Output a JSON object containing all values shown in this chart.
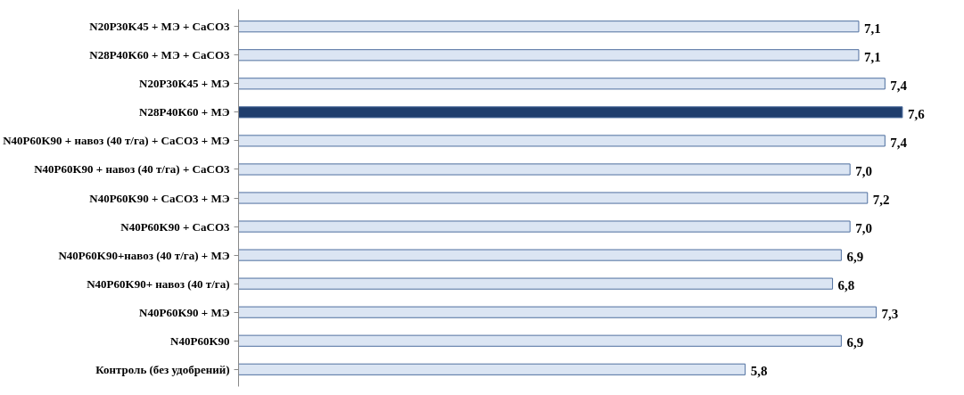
{
  "chart_data": {
    "type": "bar",
    "orientation": "horizontal",
    "categories": [
      "N20P30K45 + МЭ + CaCO3",
      "N28P40K60 + МЭ + CaCO3",
      "N20P30K45 + МЭ",
      "N28P40K60 + МЭ",
      "N40P60K90 + навоз (40 т/га) + CaCO3 + МЭ",
      "N40P60K90 + навоз (40 т/га) + CaCO3",
      "N40P60K90 + CaCO3 + МЭ",
      "N40P60K90 + CaCO3",
      "N40P60K90+навоз (40 т/га) + МЭ",
      "N40P60K90+ навоз (40 т/га)",
      "N40P60K90 + МЭ",
      "N40P60K90",
      "Контроль (без удобрений)"
    ],
    "values": [
      7.1,
      7.1,
      7.4,
      7.6,
      7.4,
      7.0,
      7.2,
      7.0,
      6.9,
      6.8,
      7.3,
      6.9,
      5.8
    ],
    "value_labels": [
      "7,1",
      "7,1",
      "7,4",
      "7,6",
      "7,4",
      "7,0",
      "7,2",
      "7,0",
      "6,9",
      "6,8",
      "7,3",
      "6,9",
      "5,8"
    ],
    "colors": [
      "#dbe5f3",
      "#dbe5f3",
      "#dbe5f3",
      "#1f3e6d",
      "#dbe5f3",
      "#dbe5f3",
      "#dbe5f3",
      "#dbe5f3",
      "#dbe5f3",
      "#dbe5f3",
      "#dbe5f3",
      "#dbe5f3",
      "#dbe5f3"
    ],
    "grid": false
  }
}
